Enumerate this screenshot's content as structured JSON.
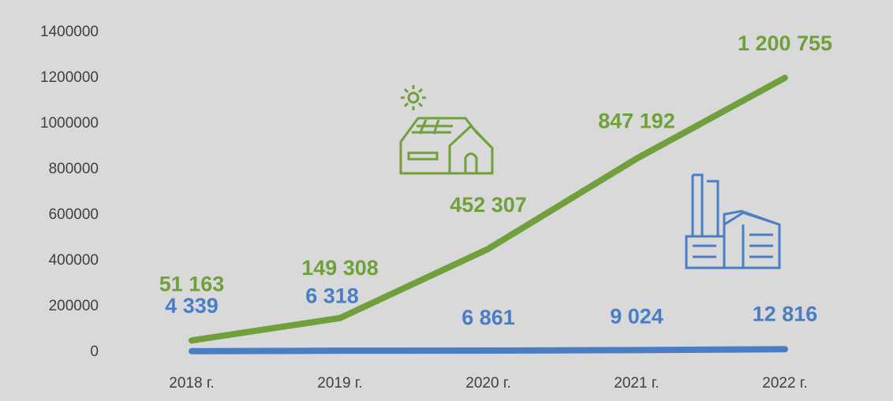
{
  "chart_data": {
    "type": "line",
    "categories": [
      "2018 г.",
      "2019 г.",
      "2020 г.",
      "2021 г.",
      "2022 г."
    ],
    "series": [
      {
        "color": "#70a03c",
        "values": [
          51163,
          149308,
          452307,
          847192,
          1200755
        ],
        "value_labels": [
          "51 163",
          "149 308",
          "452 307",
          "847 192",
          "1 200 755"
        ]
      },
      {
        "color": "#4a7ec4",
        "values": [
          4339,
          6318,
          6861,
          9024,
          12816
        ],
        "value_labels": [
          "4 339",
          "6 318",
          "6 861",
          "9 024",
          "12 816"
        ]
      }
    ],
    "ylim": [
      0,
      1400000
    ],
    "yticks": [
      0,
      200000,
      400000,
      600000,
      800000,
      1000000,
      1200000,
      1400000
    ],
    "grid": false
  }
}
